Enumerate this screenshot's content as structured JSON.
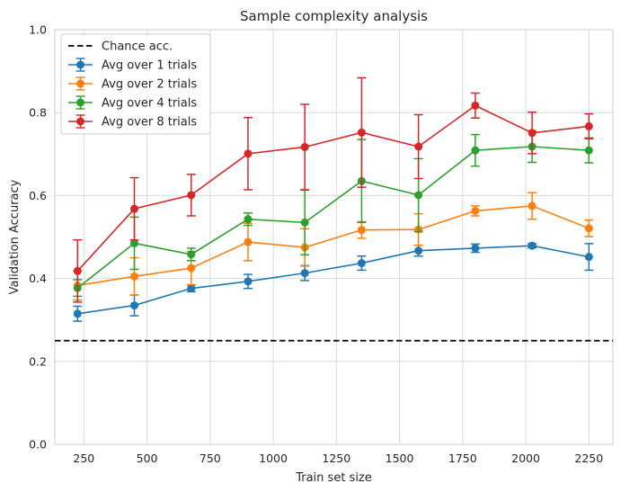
{
  "chart_data": {
    "type": "line",
    "title": "Sample complexity analysis",
    "xlabel": "Train set size",
    "ylabel": "Validation Accuracy",
    "xlim": [
      135,
      2345
    ],
    "ylim": [
      0.0,
      1.0
    ],
    "xticks": [
      250,
      500,
      750,
      1000,
      1250,
      1500,
      1750,
      2000,
      2250
    ],
    "xtick_labels": [
      "250",
      "500",
      "750",
      "1000",
      "1250",
      "1500",
      "1750",
      "2000",
      "2250"
    ],
    "yticks": [
      0.0,
      0.2,
      0.4,
      0.6,
      0.8,
      1.0
    ],
    "ytick_labels": [
      "0.0",
      "0.2",
      "0.4",
      "0.6",
      "0.8",
      "1.0"
    ],
    "grid": true,
    "legend_position": "top-left",
    "x": [
      225,
      450,
      675,
      900,
      1125,
      1350,
      1575,
      1800,
      2025,
      2250
    ],
    "reference_line": {
      "name": "Chance acc.",
      "y": 0.25,
      "color": "#000000",
      "style": "dashed"
    },
    "series": [
      {
        "name": "Avg over 1 trials",
        "color": "#1f77b4",
        "values": [
          0.315,
          0.335,
          0.376,
          0.393,
          0.413,
          0.437,
          0.467,
          0.473,
          0.479,
          0.452
        ],
        "errors": [
          0.018,
          0.025,
          0.008,
          0.017,
          0.018,
          0.017,
          0.013,
          0.01,
          0.005,
          0.032
        ]
      },
      {
        "name": "Avg over 2 trials",
        "color": "#ff7f0e",
        "values": [
          0.383,
          0.405,
          0.425,
          0.488,
          0.475,
          0.517,
          0.518,
          0.563,
          0.575,
          0.521
        ],
        "errors": [
          0.035,
          0.045,
          0.04,
          0.045,
          0.045,
          0.02,
          0.038,
          0.012,
          0.032,
          0.02
        ]
      },
      {
        "name": "Avg over 4 trials",
        "color": "#2ca02c",
        "values": [
          0.377,
          0.485,
          0.458,
          0.543,
          0.535,
          0.635,
          0.601,
          0.709,
          0.718,
          0.709
        ],
        "errors": [
          0.02,
          0.063,
          0.015,
          0.015,
          0.078,
          0.1,
          0.088,
          0.038,
          0.038,
          0.03
        ]
      },
      {
        "name": "Avg over 8 trials",
        "color": "#d62728",
        "values": [
          0.418,
          0.568,
          0.601,
          0.701,
          0.717,
          0.752,
          0.718,
          0.817,
          0.751,
          0.767
        ],
        "errors": [
          0.075,
          0.075,
          0.05,
          0.087,
          0.103,
          0.132,
          0.077,
          0.03,
          0.05,
          0.03
        ]
      }
    ]
  }
}
